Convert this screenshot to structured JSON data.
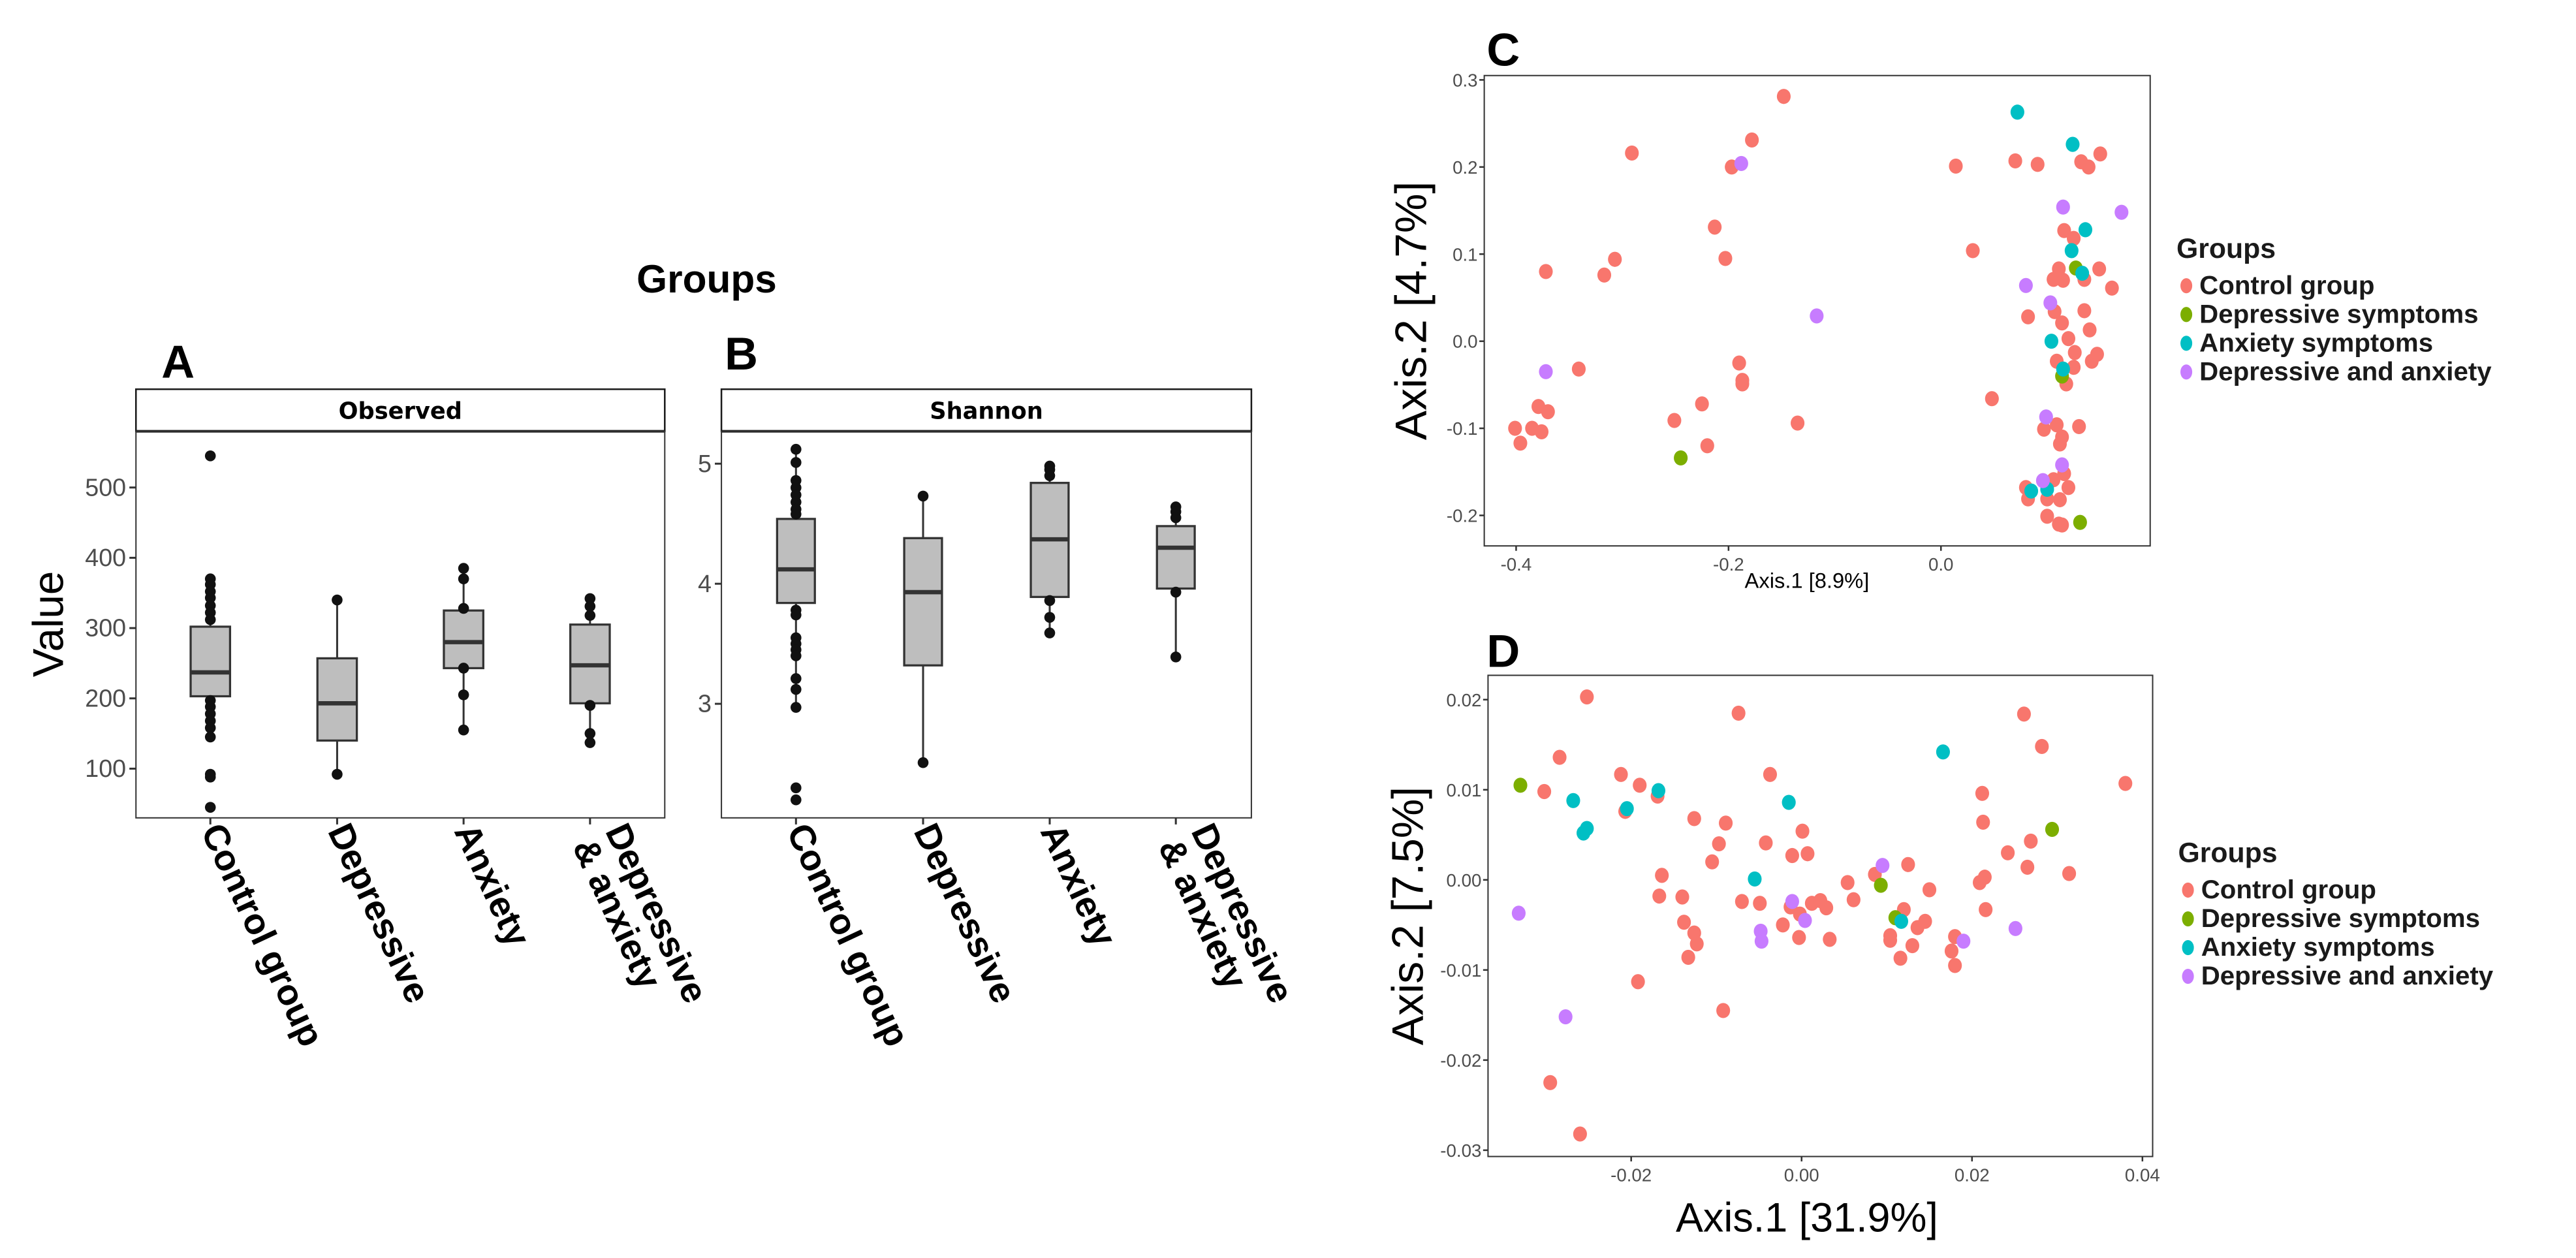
{
  "figure_title": "Groups",
  "colors": {
    "Control group": "#F8766D",
    "Depressive symptoms": "#7CAE00",
    "Anxiety symptoms": "#00BFC4",
    "Depressive and anxiety": "#C77CFF",
    "box_fill": "#bebebe"
  },
  "chart_data": [
    {
      "panel": "A",
      "type": "box",
      "strip_title": "Observed",
      "ylabel": "Value",
      "ylim": [
        30,
        580
      ],
      "yticks": [
        100,
        200,
        300,
        400,
        500
      ],
      "categories": [
        "Control group",
        "Depressive",
        "Anxiety",
        "Depressive & anxiety"
      ],
      "boxes": [
        {
          "q1": 203,
          "median": 237,
          "q3": 302,
          "whisker_low": 145,
          "whisker_high": 370,
          "points": [
            545,
            370,
            362,
            352,
            343,
            332,
            322,
            312,
            197,
            188,
            178,
            168,
            158,
            145,
            92,
            88,
            45
          ]
        },
        {
          "q1": 140,
          "median": 193,
          "q3": 257,
          "whisker_low": 92,
          "whisker_high": 340,
          "points": [
            340,
            92
          ]
        },
        {
          "q1": 243,
          "median": 280,
          "q3": 325,
          "whisker_low": 155,
          "whisker_high": 385,
          "points": [
            385,
            370,
            328,
            243,
            205,
            155
          ]
        },
        {
          "q1": 193,
          "median": 247,
          "q3": 305,
          "whisker_low": 137,
          "whisker_high": 342,
          "points": [
            342,
            331,
            318,
            190,
            150,
            137
          ]
        }
      ]
    },
    {
      "panel": "B",
      "type": "box",
      "strip_title": "Shannon",
      "ylabel": "",
      "ylim": [
        2.05,
        5.27
      ],
      "yticks": [
        3,
        4,
        5
      ],
      "categories": [
        "Control group",
        "Depressive",
        "Anxiety",
        "Depressive & anxiety"
      ],
      "boxes": [
        {
          "q1": 3.84,
          "median": 4.12,
          "q3": 4.54,
          "whisker_low": 2.97,
          "whisker_high": 5.12,
          "points": [
            5.12,
            5.01,
            4.86,
            4.8,
            4.74,
            4.68,
            4.62,
            4.58,
            3.78,
            3.74,
            3.55,
            3.5,
            3.45,
            3.4,
            3.21,
            3.12,
            2.97,
            2.3,
            2.2
          ]
        },
        {
          "q1": 3.32,
          "median": 3.93,
          "q3": 4.38,
          "whisker_low": 2.51,
          "whisker_high": 4.73,
          "points": [
            4.73,
            2.51
          ]
        },
        {
          "q1": 3.89,
          "median": 4.37,
          "q3": 4.84,
          "whisker_low": 3.59,
          "whisker_high": 4.98,
          "points": [
            4.98,
            4.95,
            4.9,
            3.86,
            3.72,
            3.59
          ]
        },
        {
          "q1": 3.96,
          "median": 4.3,
          "q3": 4.48,
          "whisker_low": 3.39,
          "whisker_high": 4.64,
          "points": [
            4.64,
            4.6,
            4.55,
            3.93,
            3.39
          ]
        }
      ]
    },
    {
      "panel": "C",
      "type": "scatter",
      "xlabel": "Axis.1   [8.9%]",
      "ylabel": "Axis.2  [4.7%]",
      "xlim": [
        -0.43,
        0.197
      ],
      "ylim": [
        -0.235,
        0.305
      ],
      "xticks": [
        -0.4,
        -0.2,
        0.0
      ],
      "xtick_labels": [
        "-0.4",
        "-0.2",
        "0.0"
      ],
      "yticks": [
        0.3,
        0.2,
        0.1,
        0.0,
        -0.1,
        -0.2
      ],
      "ytick_labels": [
        "0.3",
        "0.2",
        "0.1",
        "0.0",
        "-0.1",
        "-0.2"
      ],
      "legend_title": "Groups",
      "legend": [
        "Control group",
        "Depressive symptoms",
        "Anxiety symptoms",
        "Depressive and anxiety"
      ],
      "series": [
        {
          "name": "Control group",
          "points": [
            [
              -0.148,
              0.281
            ],
            [
              -0.178,
              0.231
            ],
            [
              -0.291,
              0.216
            ],
            [
              -0.197,
              0.2
            ],
            [
              0.014,
              0.201
            ],
            [
              0.07,
              0.207
            ],
            [
              0.091,
              0.203
            ],
            [
              0.132,
              0.206
            ],
            [
              0.139,
              0.2
            ],
            [
              0.15,
              0.215
            ],
            [
              -0.213,
              0.131
            ],
            [
              -0.203,
              0.095
            ],
            [
              -0.307,
              0.094
            ],
            [
              -0.317,
              0.076
            ],
            [
              -0.372,
              0.08
            ],
            [
              0.03,
              0.104
            ],
            [
              0.116,
              0.127
            ],
            [
              0.125,
              0.118
            ],
            [
              0.111,
              0.083
            ],
            [
              0.149,
              0.083
            ],
            [
              0.106,
              0.071
            ],
            [
              0.115,
              0.07
            ],
            [
              0.135,
              0.071
            ],
            [
              0.161,
              0.061
            ],
            [
              0.082,
              0.028
            ],
            [
              0.107,
              0.034
            ],
            [
              0.135,
              0.035
            ],
            [
              0.114,
              0.021
            ],
            [
              0.14,
              0.013
            ],
            [
              0.12,
              0.003
            ],
            [
              0.126,
              -0.013
            ],
            [
              0.147,
              -0.015
            ],
            [
              0.109,
              -0.023
            ],
            [
              0.142,
              -0.023
            ],
            [
              0.125,
              -0.03
            ],
            [
              0.118,
              -0.049
            ],
            [
              -0.19,
              -0.025
            ],
            [
              -0.187,
              -0.045
            ],
            [
              -0.187,
              -0.049
            ],
            [
              -0.341,
              -0.032
            ],
            [
              0.048,
              -0.066
            ],
            [
              -0.225,
              -0.072
            ],
            [
              -0.251,
              -0.091
            ],
            [
              -0.135,
              -0.094
            ],
            [
              -0.379,
              -0.075
            ],
            [
              -0.37,
              -0.081
            ],
            [
              -0.401,
              -0.1
            ],
            [
              -0.385,
              -0.1
            ],
            [
              -0.376,
              -0.104
            ],
            [
              -0.396,
              -0.117
            ],
            [
              -0.22,
              -0.12
            ],
            [
              0.097,
              -0.101
            ],
            [
              0.109,
              -0.096
            ],
            [
              0.13,
              -0.098
            ],
            [
              0.114,
              -0.11
            ],
            [
              0.112,
              -0.118
            ],
            [
              0.116,
              -0.152
            ],
            [
              0.106,
              -0.159
            ],
            [
              0.08,
              -0.168
            ],
            [
              0.12,
              -0.168
            ],
            [
              0.082,
              -0.181
            ],
            [
              0.1,
              -0.181
            ],
            [
              0.112,
              -0.182
            ],
            [
              0.1,
              -0.201
            ],
            [
              0.111,
              -0.21
            ],
            [
              0.114,
              -0.211
            ]
          ]
        },
        {
          "name": "Depressive symptoms",
          "points": [
            [
              0.127,
              0.084
            ],
            [
              0.114,
              -0.04
            ],
            [
              -0.245,
              -0.134
            ],
            [
              0.131,
              -0.208
            ]
          ]
        },
        {
          "name": "Anxiety symptoms",
          "points": [
            [
              0.072,
              0.263
            ],
            [
              0.124,
              0.226
            ],
            [
              0.136,
              0.128
            ],
            [
              0.123,
              0.104
            ],
            [
              0.133,
              0.078
            ],
            [
              0.104,
              0.0
            ],
            [
              0.115,
              -0.032
            ],
            [
              0.085,
              -0.172
            ],
            [
              0.1,
              -0.17
            ]
          ]
        },
        {
          "name": "Depressive and anxiety",
          "points": [
            [
              -0.188,
              0.204
            ],
            [
              0.115,
              0.154
            ],
            [
              0.17,
              0.148
            ],
            [
              0.08,
              0.064
            ],
            [
              0.103,
              0.044
            ],
            [
              -0.117,
              0.029
            ],
            [
              -0.372,
              -0.035
            ],
            [
              0.099,
              -0.087
            ],
            [
              0.114,
              -0.142
            ],
            [
              0.096,
              -0.16
            ]
          ]
        }
      ]
    },
    {
      "panel": "D",
      "type": "scatter",
      "xlabel": "Axis.1 [31.9%]",
      "ylabel": "Axis.2 [7.5%]",
      "xlim": [
        -0.0368,
        0.0412
      ],
      "ylim": [
        -0.0307,
        0.0227
      ],
      "xticks": [
        -0.02,
        0.0,
        0.02,
        0.04
      ],
      "xtick_labels": [
        "-0.02",
        "0.00",
        "0.02",
        "0.04"
      ],
      "yticks": [
        0.02,
        0.01,
        0.0,
        -0.01,
        -0.02,
        -0.03
      ],
      "ytick_labels": [
        "0.02",
        "0.01",
        "0.00",
        "-0.01",
        "-0.02",
        "-0.03"
      ],
      "legend_title": "Groups",
      "legend": [
        "Control group",
        "Depressive symptoms",
        "Anxiety symptoms",
        "Depressive and anxiety"
      ],
      "series": [
        {
          "name": "Control group",
          "points": [
            [
              -0.0252,
              0.0203
            ],
            [
              -0.0074,
              0.0185
            ],
            [
              0.0261,
              0.0184
            ],
            [
              0.0282,
              0.0148
            ],
            [
              -0.0284,
              0.0136
            ],
            [
              0.038,
              0.0107
            ],
            [
              -0.0212,
              0.0117
            ],
            [
              -0.0037,
              0.0117
            ],
            [
              -0.019,
              0.0105
            ],
            [
              -0.0302,
              0.0098
            ],
            [
              -0.0169,
              0.0093
            ],
            [
              0.0212,
              0.0096
            ],
            [
              -0.0207,
              0.0076
            ],
            [
              -0.0126,
              0.0068
            ],
            [
              -0.0089,
              0.0063
            ],
            [
              0.0213,
              0.0064
            ],
            [
              0.0001,
              0.0054
            ],
            [
              -0.0097,
              0.004
            ],
            [
              -0.0042,
              0.0041
            ],
            [
              0.0269,
              0.0043
            ],
            [
              0.0242,
              0.003
            ],
            [
              -0.0011,
              0.0027
            ],
            [
              0.0007,
              0.0029
            ],
            [
              -0.0105,
              0.002
            ],
            [
              0.0125,
              0.0017
            ],
            [
              0.0265,
              0.0014
            ],
            [
              0.0314,
              0.0007
            ],
            [
              -0.0164,
              0.0005
            ],
            [
              0.0086,
              0.0006
            ],
            [
              0.0215,
              0.0003
            ],
            [
              0.0054,
              -0.0003
            ],
            [
              0.0209,
              -0.0003
            ],
            [
              0.015,
              -0.0011
            ],
            [
              -0.0167,
              -0.0018
            ],
            [
              -0.014,
              -0.0019
            ],
            [
              0.0061,
              -0.0022
            ],
            [
              -0.007,
              -0.0024
            ],
            [
              -0.0049,
              -0.0026
            ],
            [
              0.0012,
              -0.0026
            ],
            [
              0.0022,
              -0.0023
            ],
            [
              -0.0013,
              -0.003
            ],
            [
              0.0029,
              -0.0031
            ],
            [
              0.012,
              -0.0033
            ],
            [
              0.0216,
              -0.0033
            ],
            [
              -0.0002,
              -0.0038
            ],
            [
              0.0145,
              -0.0046
            ],
            [
              -0.0138,
              -0.0047
            ],
            [
              -0.0022,
              -0.005
            ],
            [
              0.0136,
              -0.0053
            ],
            [
              -0.0126,
              -0.0059
            ],
            [
              0.0104,
              -0.0062
            ],
            [
              0.018,
              -0.0063
            ],
            [
              -0.0003,
              -0.0064
            ],
            [
              0.0033,
              -0.0066
            ],
            [
              0.0104,
              -0.0067
            ],
            [
              -0.0123,
              -0.0071
            ],
            [
              0.013,
              -0.0073
            ],
            [
              0.0176,
              -0.0079
            ],
            [
              -0.0133,
              -0.0086
            ],
            [
              0.0116,
              -0.0087
            ],
            [
              0.018,
              -0.0095
            ],
            [
              -0.0192,
              -0.0113
            ],
            [
              -0.0092,
              -0.0145
            ],
            [
              -0.0295,
              -0.0225
            ],
            [
              -0.026,
              -0.0282
            ]
          ]
        },
        {
          "name": "Depressive symptoms",
          "points": [
            [
              -0.033,
              0.0105
            ],
            [
              0.0294,
              0.0056
            ],
            [
              0.0093,
              -0.0006
            ],
            [
              0.011,
              -0.0042
            ]
          ]
        },
        {
          "name": "Anxiety symptoms",
          "points": [
            [
              0.0166,
              0.0142
            ],
            [
              -0.0168,
              0.0099
            ],
            [
              -0.0268,
              0.0088
            ],
            [
              -0.0015,
              0.0086
            ],
            [
              -0.0205,
              0.0079
            ],
            [
              -0.0252,
              0.0057
            ],
            [
              -0.0256,
              0.0052
            ],
            [
              -0.0055,
              0.0001
            ],
            [
              0.0117,
              -0.0046
            ]
          ]
        },
        {
          "name": "Depressive and anxiety",
          "points": [
            [
              0.0095,
              0.0016
            ],
            [
              -0.0011,
              -0.0024
            ],
            [
              -0.0332,
              -0.0037
            ],
            [
              0.0004,
              -0.0045
            ],
            [
              -0.0048,
              -0.0057
            ],
            [
              0.0251,
              -0.0054
            ],
            [
              -0.0047,
              -0.0068
            ],
            [
              0.019,
              -0.0068
            ],
            [
              -0.0277,
              -0.0152
            ]
          ]
        }
      ]
    }
  ]
}
